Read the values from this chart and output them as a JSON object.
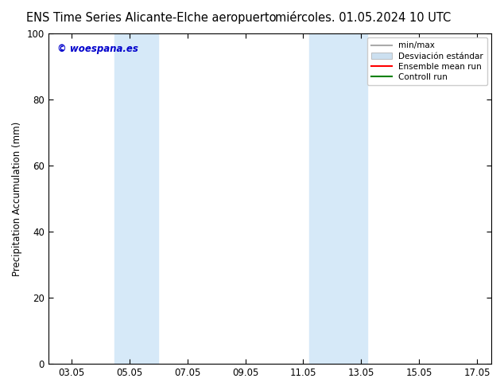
{
  "title_left": "ENS Time Series Alicante-Elche aeropuerto",
  "title_right": "miércoles. 01.05.2024 10 UTC",
  "ylabel": "Precipitation Accumulation (mm)",
  "ylim": [
    0,
    100
  ],
  "yticks": [
    0,
    20,
    40,
    60,
    80,
    100
  ],
  "xticks_labels": [
    "03.05",
    "05.05",
    "07.05",
    "09.05",
    "11.05",
    "13.05",
    "15.05",
    "17.05"
  ],
  "xtick_values": [
    0,
    2,
    4,
    6,
    8,
    10,
    12,
    14
  ],
  "xlim": [
    -0.8,
    14.5
  ],
  "shaded_regions": [
    {
      "x_start": 1.5,
      "x_end": 3.0,
      "color": "#d6e9f8"
    },
    {
      "x_start": 8.2,
      "x_end": 10.2,
      "color": "#d6e9f8"
    }
  ],
  "copyright_text": "© woespana.es",
  "copyright_color": "#0000cc",
  "legend_items": [
    {
      "label": "min/max",
      "color": "#aaaaaa",
      "lw": 1.5,
      "style": "solid"
    },
    {
      "label": "Desviación estándar",
      "color": "#cce0f0",
      "lw": 8,
      "style": "solid"
    },
    {
      "label": "Ensemble mean run",
      "color": "red",
      "lw": 1.5,
      "style": "solid"
    },
    {
      "label": "Controll run",
      "color": "green",
      "lw": 1.5,
      "style": "solid"
    }
  ],
  "background_color": "#ffffff",
  "plot_background": "#ffffff",
  "spine_color": "#000000",
  "tick_color": "#000000",
  "font_size_title": 10.5,
  "font_size_legend": 7.5,
  "font_size_ticks": 8.5,
  "font_size_ylabel": 8.5,
  "font_size_copyright": 8.5
}
